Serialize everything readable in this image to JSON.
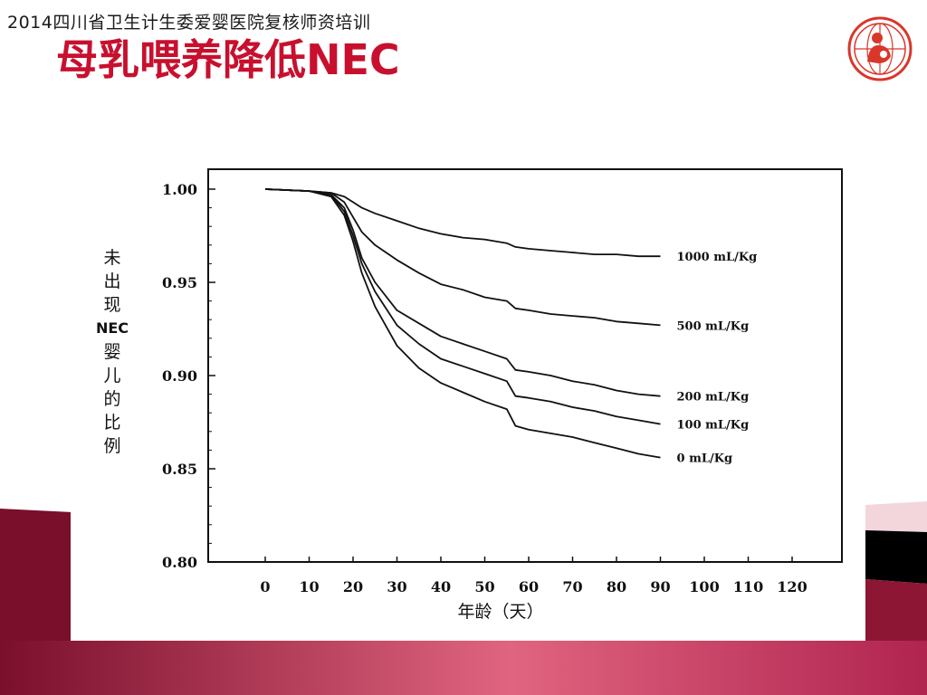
{
  "header": {
    "line": "2014四川省卫生计生委爱婴医院复核师资培训",
    "title": "母乳喂养降低NEC",
    "logo_icon": "maternal-child-health-logo-icon"
  },
  "colors": {
    "title_red": "#c8102e",
    "band_dark": "#7a0f2c",
    "band_mid": "#b02450",
    "band_light": "#e0647f",
    "logo_red": "#d8372a"
  },
  "chart_data": {
    "type": "line",
    "y_title_chars": [
      "未",
      "出",
      "现",
      "NEC",
      "婴",
      "儿",
      "的",
      "比",
      "例"
    ],
    "xlabel": "年龄（天）",
    "xlim": [
      0,
      120
    ],
    "ylim": [
      0.8,
      1.0
    ],
    "x_ticks": [
      "0",
      "10",
      "20",
      "30",
      "40",
      "50",
      "60",
      "70",
      "80",
      "90",
      "100",
      "110",
      "120"
    ],
    "y_ticks": [
      "1.00",
      "0.95",
      "0.90",
      "0.85",
      "0.80"
    ],
    "grid": false,
    "series": [
      {
        "name": "1000 mL/Kg",
        "x": [
          0,
          10,
          15,
          18,
          20,
          22,
          25,
          30,
          35,
          40,
          45,
          50,
          55,
          57,
          60,
          65,
          70,
          75,
          80,
          85,
          90
        ],
        "y": [
          1.0,
          0.999,
          0.998,
          0.996,
          0.993,
          0.99,
          0.987,
          0.983,
          0.979,
          0.976,
          0.974,
          0.973,
          0.971,
          0.969,
          0.968,
          0.967,
          0.966,
          0.965,
          0.965,
          0.964,
          0.964
        ]
      },
      {
        "name": "500 mL/Kg",
        "x": [
          0,
          10,
          15,
          18,
          20,
          22,
          25,
          30,
          35,
          40,
          45,
          50,
          55,
          57,
          60,
          65,
          70,
          75,
          80,
          85,
          90
        ],
        "y": [
          1.0,
          0.999,
          0.998,
          0.993,
          0.985,
          0.977,
          0.97,
          0.962,
          0.955,
          0.949,
          0.946,
          0.942,
          0.94,
          0.936,
          0.935,
          0.933,
          0.932,
          0.931,
          0.929,
          0.928,
          0.927
        ]
      },
      {
        "name": "200 mL/Kg",
        "x": [
          0,
          10,
          15,
          18,
          20,
          22,
          25,
          30,
          35,
          40,
          45,
          50,
          55,
          57,
          60,
          65,
          70,
          75,
          80,
          85,
          90
        ],
        "y": [
          1.0,
          0.999,
          0.997,
          0.99,
          0.978,
          0.963,
          0.95,
          0.935,
          0.928,
          0.921,
          0.917,
          0.913,
          0.909,
          0.903,
          0.902,
          0.9,
          0.897,
          0.895,
          0.892,
          0.89,
          0.889
        ]
      },
      {
        "name": "100 mL/Kg",
        "x": [
          0,
          10,
          15,
          18,
          20,
          22,
          25,
          30,
          35,
          40,
          45,
          50,
          55,
          57,
          60,
          65,
          70,
          75,
          80,
          85,
          90
        ],
        "y": [
          1.0,
          0.999,
          0.997,
          0.988,
          0.975,
          0.96,
          0.945,
          0.927,
          0.917,
          0.909,
          0.905,
          0.901,
          0.897,
          0.889,
          0.888,
          0.886,
          0.883,
          0.881,
          0.878,
          0.876,
          0.874
        ]
      },
      {
        "name": "0 mL/Kg",
        "x": [
          0,
          10,
          15,
          18,
          20,
          22,
          25,
          30,
          35,
          40,
          45,
          50,
          55,
          57,
          60,
          65,
          70,
          75,
          80,
          85,
          90
        ],
        "y": [
          1.0,
          0.999,
          0.996,
          0.986,
          0.972,
          0.955,
          0.937,
          0.916,
          0.904,
          0.896,
          0.891,
          0.886,
          0.882,
          0.873,
          0.871,
          0.869,
          0.867,
          0.864,
          0.861,
          0.858,
          0.856
        ]
      }
    ],
    "series_labels": [
      "1000 mL/Kg",
      "500 mL/Kg",
      "200 mL/Kg",
      "100 mL/Kg",
      "0 mL/Kg"
    ]
  }
}
